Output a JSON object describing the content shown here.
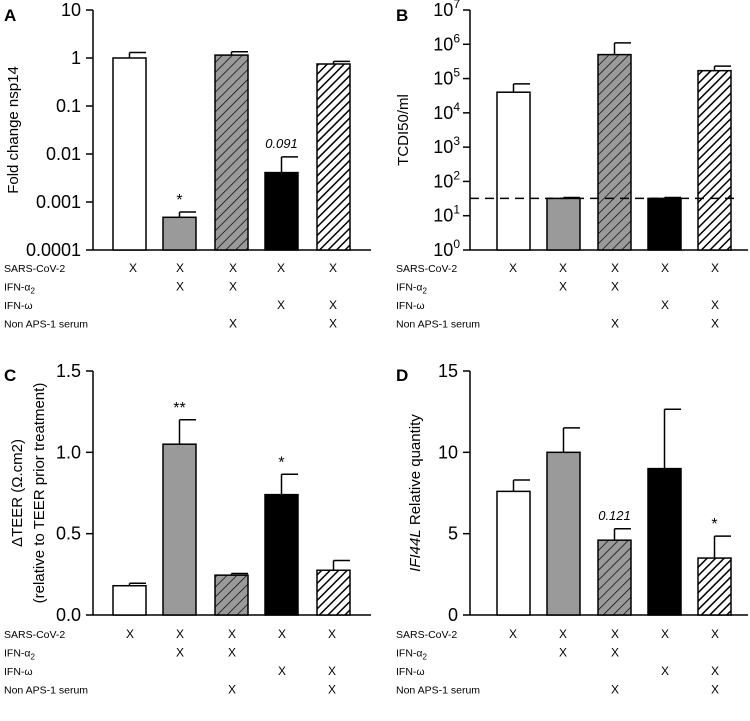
{
  "fills": {
    "white": "#ffffff",
    "grey": "#9a9a9a",
    "black": "#000000",
    "stroke": "#000000"
  },
  "chart_data": [
    {
      "panel": "A",
      "type": "bar",
      "scale": "log10",
      "ylabel": "Fold change nsp14",
      "ylim": [
        0.0001,
        10
      ],
      "yticks": [
        {
          "value": 10,
          "label": "10"
        },
        {
          "value": 1,
          "label": "1"
        },
        {
          "value": 0.1,
          "label": "0.1"
        },
        {
          "value": 0.01,
          "label": "0.01"
        },
        {
          "value": 0.001,
          "label": "0.001"
        },
        {
          "value": 0.0001,
          "label": "0.0001"
        }
      ],
      "values": [
        1.0,
        0.00048,
        1.15,
        0.0041,
        0.75
      ],
      "errors": [
        1.3,
        0.00062,
        1.35,
        0.0087,
        0.85
      ],
      "patterns": [
        "white",
        "grey",
        "grey-hatch",
        "black",
        "bw-hatch"
      ],
      "annotations": [
        {
          "bar": 1,
          "text": "*",
          "style": "bold"
        },
        {
          "bar": 3,
          "text": "0.091",
          "style": "italic"
        }
      ],
      "conditions": {
        "rows": [
          "SARS-CoV-2",
          "IFN-α2",
          "IFN-ω",
          "Non APS-1 serum"
        ],
        "mark": "X",
        "matrix": [
          [
            1,
            1,
            1,
            1,
            1
          ],
          [
            0,
            1,
            1,
            0,
            0
          ],
          [
            0,
            0,
            0,
            1,
            1
          ],
          [
            0,
            0,
            1,
            0,
            1
          ]
        ]
      }
    },
    {
      "panel": "B",
      "type": "bar",
      "scale": "log10",
      "ylabel": "TCDI50/ml",
      "ylim": [
        1,
        10000000
      ],
      "yticks": [
        {
          "value": 10000000,
          "base": "10",
          "exp": "7"
        },
        {
          "value": 1000000,
          "base": "10",
          "exp": "6"
        },
        {
          "value": 100000,
          "base": "10",
          "exp": "5"
        },
        {
          "value": 10000,
          "base": "10",
          "exp": "4"
        },
        {
          "value": 1000,
          "base": "10",
          "exp": "3"
        },
        {
          "value": 100,
          "base": "10",
          "exp": "2"
        },
        {
          "value": 10,
          "base": "10",
          "exp": "1"
        },
        {
          "value": 1,
          "base": "10",
          "exp": "0"
        }
      ],
      "values": [
        40000,
        32,
        500000,
        32,
        170000
      ],
      "errors": [
        70000,
        34,
        1100000,
        34,
        230000
      ],
      "detection_limit": 32,
      "patterns": [
        "white",
        "grey",
        "grey-hatch",
        "black",
        "bw-hatch"
      ],
      "annotations": [],
      "conditions": {
        "rows": [
          "SARS-CoV-2",
          "IFN-α2",
          "IFN-ω",
          "Non APS-1 serum"
        ],
        "mark": "X",
        "matrix": [
          [
            1,
            1,
            1,
            1,
            1
          ],
          [
            0,
            1,
            1,
            0,
            0
          ],
          [
            0,
            0,
            0,
            1,
            1
          ],
          [
            0,
            0,
            1,
            0,
            1
          ]
        ]
      }
    },
    {
      "panel": "C",
      "type": "bar",
      "scale": "linear",
      "ylabel": "ΔTEER (Ω.cm2)",
      "ylabel2": "(relative to TEER prior treatment)",
      "ylim": [
        0,
        1.5
      ],
      "yticks": [
        {
          "value": 1.5,
          "label": "1.5"
        },
        {
          "value": 1.0,
          "label": "1.0"
        },
        {
          "value": 0.5,
          "label": "0.5"
        },
        {
          "value": 0.0,
          "label": "0.0"
        }
      ],
      "values": [
        0.18,
        1.05,
        0.245,
        0.74,
        0.275
      ],
      "errors": [
        0.195,
        1.2,
        0.255,
        0.865,
        0.335
      ],
      "patterns": [
        "white",
        "grey",
        "grey-hatch",
        "black",
        "bw-hatch"
      ],
      "annotations": [
        {
          "bar": 1,
          "text": "**",
          "style": "bold"
        },
        {
          "bar": 3,
          "text": "*",
          "style": "bold"
        }
      ],
      "conditions": {
        "rows": [
          "SARS-CoV-2",
          "IFN-α2",
          "IFN-ω",
          "Non APS-1 serum"
        ],
        "mark": "X",
        "matrix": [
          [
            1,
            1,
            1,
            1,
            1
          ],
          [
            0,
            1,
            1,
            0,
            0
          ],
          [
            0,
            0,
            0,
            1,
            1
          ],
          [
            0,
            0,
            1,
            0,
            1
          ]
        ]
      }
    },
    {
      "panel": "D",
      "type": "bar",
      "scale": "linear",
      "ylabel_italic": "IFI44L",
      "ylabel_rest": " Relative quantity",
      "ylim": [
        0,
        15
      ],
      "yticks": [
        {
          "value": 15,
          "label": "15"
        },
        {
          "value": 10,
          "label": "10"
        },
        {
          "value": 5,
          "label": "5"
        },
        {
          "value": 0,
          "label": "0"
        }
      ],
      "values": [
        7.6,
        10.0,
        4.6,
        9.0,
        3.5
      ],
      "errors": [
        8.3,
        11.5,
        5.3,
        12.65,
        4.85
      ],
      "patterns": [
        "white",
        "grey",
        "grey-hatch",
        "black",
        "bw-hatch"
      ],
      "annotations": [
        {
          "bar": 2,
          "text": "0.121",
          "style": "italic"
        },
        {
          "bar": 4,
          "text": "*",
          "style": "bold"
        }
      ],
      "conditions": {
        "rows": [
          "SARS-CoV-2",
          "IFN-α2",
          "IFN-ω",
          "Non APS-1 serum"
        ],
        "mark": "X",
        "matrix": [
          [
            1,
            1,
            1,
            1,
            1
          ],
          [
            0,
            1,
            1,
            0,
            0
          ],
          [
            0,
            0,
            0,
            1,
            1
          ],
          [
            0,
            0,
            1,
            0,
            1
          ]
        ]
      }
    }
  ]
}
